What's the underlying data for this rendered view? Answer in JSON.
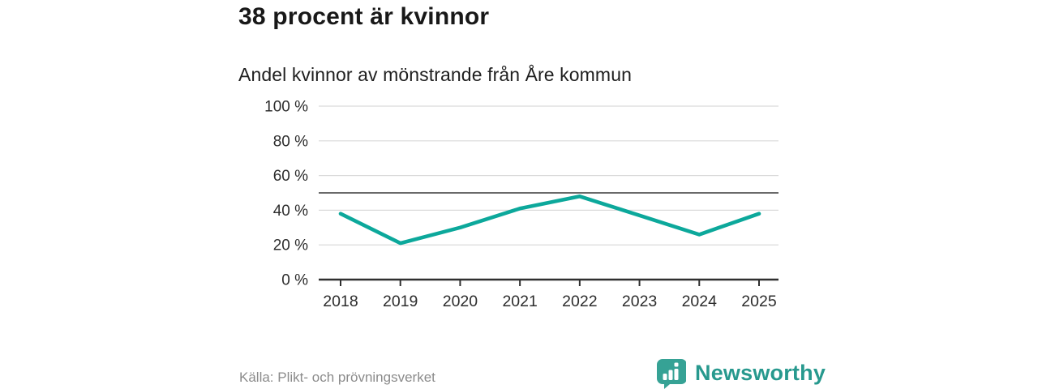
{
  "header": {
    "title": "38 procent är kvinnor",
    "subtitle": "Andel kvinnor av mönstrande från Åre kommun"
  },
  "chart_data": {
    "type": "line",
    "title": "38 procent är kvinnor",
    "subtitle": "Andel kvinnor av mönstrande från Åre kommun",
    "x": [
      2018,
      2019,
      2020,
      2021,
      2022,
      2023,
      2024,
      2025
    ],
    "values": [
      38,
      21,
      30,
      41,
      48,
      37,
      26,
      38
    ],
    "unit": "%",
    "ylim": [
      0,
      100
    ],
    "y_ticks": [
      0,
      20,
      40,
      60,
      80,
      100
    ],
    "y_tick_suffix": " %",
    "reference_line": 50,
    "grid": true,
    "legend": "none",
    "line_color": "#0ca89b",
    "gridline_color": "#d9d9d9",
    "reference_line_color": "#6a6a6a",
    "axis_color": "#2f2f2f",
    "tick_label_color": "#2d2d2d"
  },
  "footer": {
    "source": "Källa: Plikt- och prövningsverket",
    "brand": "Newsworthy",
    "brand_color": "#27998e",
    "brand_icon": "speech-bubble-bar-chart"
  }
}
